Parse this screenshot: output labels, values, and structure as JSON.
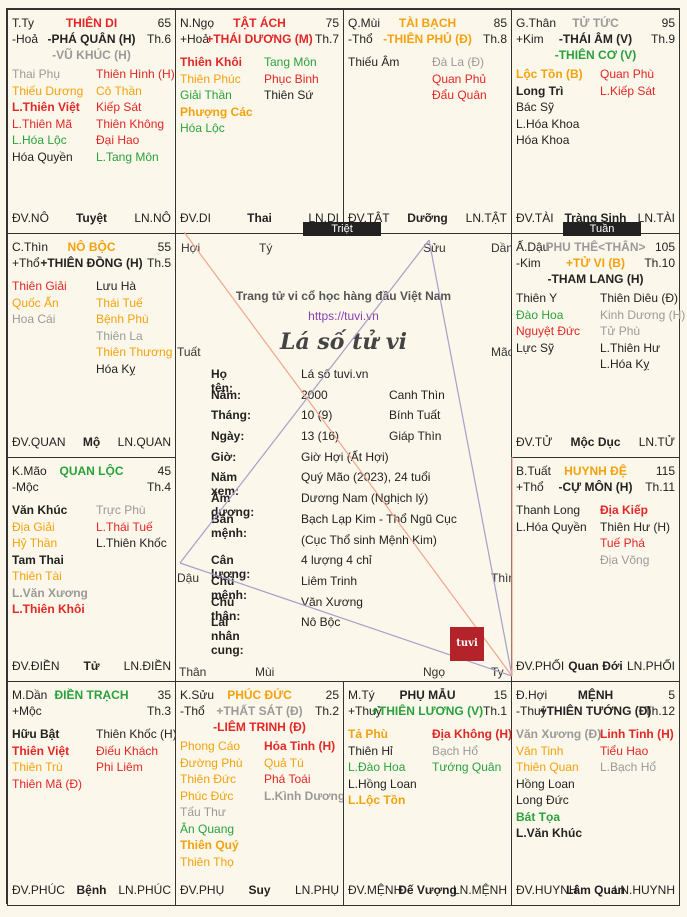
{
  "cells": [
    {
      "id": "ty",
      "pos": "T.Ty",
      "house": "THIÊN DI",
      "house_color": "#e32626",
      "age": "65",
      "el": "-Hoả",
      "main": "-PHÁ QUÂN (H)",
      "main_color": "#222",
      "th": "Th.6",
      "sub": "-VŨ KHÚC (H)",
      "sub_color": "#9a9a9a",
      "left": [
        {
          "t": "Thai Phụ",
          "c": "gray"
        },
        {
          "t": "Thiếu Dương",
          "c": "orange"
        },
        {
          "t": "L.Thiên Việt",
          "c": "red b"
        },
        {
          "t": "L.Thiên Mã",
          "c": "red"
        },
        {
          "t": "L.Hóa Lộc",
          "c": "green"
        },
        {
          "t": "Hóa Quyền",
          "c": "black"
        }
      ],
      "right": [
        {
          "t": "Thiên Hình (H)",
          "c": "red"
        },
        {
          "t": "Cô Thần",
          "c": "orange"
        },
        {
          "t": "Kiếp Sát",
          "c": "red"
        },
        {
          "t": "Thiên Không",
          "c": "red"
        },
        {
          "t": "Đại Hao",
          "c": "red"
        },
        {
          "t": "L.Tang Môn",
          "c": "green"
        }
      ],
      "b1": "ĐV.NÔ",
      "b2": "Tuyệt",
      "b3": "LN.NÔ"
    },
    {
      "id": "ngo",
      "pos": "N.Ngọ",
      "house": "TẬT ÁCH",
      "house_color": "#e32626",
      "age": "75",
      "el": "+Hoả",
      "main": "+THÁI DƯƠNG (M)",
      "main_color": "#e32626",
      "th": "Th.7",
      "sub": "",
      "sub_color": "#222",
      "left": [
        {
          "t": "Thiên Khôi",
          "c": "red b"
        },
        {
          "t": "Thiên Phúc",
          "c": "orange"
        },
        {
          "t": "Giải Thần",
          "c": "green"
        },
        {
          "t": "Phượng Các",
          "c": "orange b"
        },
        {
          "t": "Hóa Lộc",
          "c": "green"
        }
      ],
      "right": [
        {
          "t": "Tang Môn",
          "c": "green"
        },
        {
          "t": "Phục Binh",
          "c": "red"
        },
        {
          "t": "Thiên Sứ",
          "c": "black"
        }
      ],
      "b1": "ĐV.DI",
      "b2": "Thai",
      "b3": "LN.DI"
    },
    {
      "id": "mui",
      "pos": "Q.Mùi",
      "house": "TÀI BẠCH",
      "house_color": "#f3a20d",
      "age": "85",
      "el": "-Thổ",
      "main": "-THIÊN PHỦ (Đ)",
      "main_color": "#f3a20d",
      "th": "Th.8",
      "sub": "",
      "sub_color": "#222",
      "left": [
        {
          "t": "Thiếu Âm",
          "c": "black"
        }
      ],
      "right": [
        {
          "t": "Đà La (Đ)",
          "c": "gray"
        },
        {
          "t": "Quan Phủ",
          "c": "red"
        },
        {
          "t": "Đẩu Quân",
          "c": "red"
        }
      ],
      "b1": "ĐV.TẬT",
      "b2": "Dưỡng",
      "b3": "LN.TẬT"
    },
    {
      "id": "than",
      "pos": "G.Thân",
      "house": "TỬ TỨC",
      "house_color": "#9a9a9a",
      "age": "95",
      "el": "+Kim",
      "main": "-THÁI ÂM (V)",
      "main_color": "#222",
      "th": "Th.9",
      "sub": "-THIÊN CƠ (V)",
      "sub_color": "#2aa13d",
      "left": [
        {
          "t": "Lộc Tồn (B)",
          "c": "orange b"
        },
        {
          "t": "Long Trì",
          "c": "black b"
        },
        {
          "t": "Bác Sỹ",
          "c": "black"
        },
        {
          "t": "L.Hóa Khoa",
          "c": "black"
        },
        {
          "t": "Hóa Khoa",
          "c": "black"
        }
      ],
      "right": [
        {
          "t": "Quan Phù",
          "c": "red"
        },
        {
          "t": "L.Kiếp Sát",
          "c": "red"
        }
      ],
      "b1": "ĐV.TÀI",
      "b2": "Tràng Sinh",
      "b3": "LN.TÀI"
    },
    {
      "id": "thin",
      "pos": "C.Thìn",
      "house": "NÔ BỘC",
      "house_color": "#f3a20d",
      "age": "55",
      "el": "+Thổ",
      "main": "+THIÊN ĐỒNG (H)",
      "main_color": "#222",
      "th": "Th.5",
      "sub": "",
      "sub_color": "#222",
      "left": [
        {
          "t": "Thiên Giải",
          "c": "red"
        },
        {
          "t": "Quốc Ấn",
          "c": "orange"
        },
        {
          "t": "Hoa Cái",
          "c": "gray"
        }
      ],
      "right": [
        {
          "t": "Lưu Hà",
          "c": "black"
        },
        {
          "t": "Thái Tuế",
          "c": "orange"
        },
        {
          "t": "Bệnh Phù",
          "c": "orange"
        },
        {
          "t": "Thiên La",
          "c": "gray"
        },
        {
          "t": "Thiên Thương",
          "c": "orange"
        },
        {
          "t": "Hóa Kỵ",
          "c": "black"
        }
      ],
      "b1": "ĐV.QUAN",
      "b2": "Mộ",
      "b3": "LN.QUAN"
    },
    {
      "id": "dau",
      "pos": "Ấ.Dậu",
      "house": "PHU THÊ<THÂN>",
      "house_color": "#9a9a9a",
      "age": "105",
      "el": "-Kim",
      "main": "+TỬ VI (B)",
      "main_color": "#f3a20d",
      "th": "Th.10",
      "sub": "-THAM LANG (H)",
      "sub_color": "#222",
      "left": [
        {
          "t": "Thiên Y",
          "c": "black"
        },
        {
          "t": "Đào Hoa",
          "c": "green"
        },
        {
          "t": "Nguyệt Đức",
          "c": "red"
        },
        {
          "t": "Lực Sỹ",
          "c": "black"
        }
      ],
      "right": [
        {
          "t": "Thiên Diêu (Đ)",
          "c": "black"
        },
        {
          "t": "Kinh Dương (H)",
          "c": "gray"
        },
        {
          "t": "Tử Phù",
          "c": "gray"
        },
        {
          "t": "L.Thiên Hư",
          "c": "black"
        },
        {
          "t": "L.Hóa Kỵ",
          "c": "black"
        }
      ],
      "b1": "ĐV.TỬ",
      "b2": "Mộc Dục",
      "b3": "LN.TỬ"
    },
    {
      "id": "mao",
      "pos": "K.Mão",
      "house": "QUAN LỘC",
      "house_color": "#2aa13d",
      "age": "45",
      "el": "-Mộc",
      "main": "",
      "main_color": "#222",
      "th": "Th.4",
      "sub": "",
      "sub_color": "#222",
      "left": [
        {
          "t": "Văn Khúc",
          "c": "black b"
        },
        {
          "t": "Địa Giải",
          "c": "orange"
        },
        {
          "t": "Hỷ Thần",
          "c": "orange"
        },
        {
          "t": "Tam Thai",
          "c": "black b"
        },
        {
          "t": "Thiên Tài",
          "c": "orange"
        },
        {
          "t": "L.Văn Xương",
          "c": "gray b"
        },
        {
          "t": "L.Thiên Khôi",
          "c": "red b"
        }
      ],
      "right": [
        {
          "t": "Trực Phù",
          "c": "gray"
        },
        {
          "t": "L.Thái Tuế",
          "c": "red"
        },
        {
          "t": "L.Thiên Khốc",
          "c": "black"
        }
      ],
      "b1": "ĐV.ĐIỀN",
      "b2": "Tử",
      "b3": "LN.ĐIỀN"
    },
    {
      "id": "tuat",
      "pos": "B.Tuất",
      "house": "HUYNH ĐỆ",
      "house_color": "#f3a20d",
      "age": "115",
      "el": "+Thổ",
      "main": "-CỰ MÔN (H)",
      "main_color": "#222",
      "th": "Th.11",
      "sub": "",
      "sub_color": "#222",
      "left": [
        {
          "t": "Thanh Long",
          "c": "black"
        },
        {
          "t": "L.Hóa Quyền",
          "c": "black"
        }
      ],
      "right": [
        {
          "t": "Địa Kiếp",
          "c": "red b"
        },
        {
          "t": "Thiên Hư (H)",
          "c": "black"
        },
        {
          "t": "Tuế Phá",
          "c": "red"
        },
        {
          "t": "Địa Võng",
          "c": "gray"
        }
      ],
      "b1": "ĐV.PHỐI",
      "b2": "Quan Đới",
      "b3": "LN.PHỐI"
    },
    {
      "id": "dan",
      "pos": "M.Dần",
      "house": "ĐIỀN TRẠCH",
      "house_color": "#2aa13d",
      "age": "35",
      "el": "+Mộc",
      "main": "",
      "main_color": "#222",
      "th": "Th.3",
      "sub": "",
      "sub_color": "#222",
      "left": [
        {
          "t": "Hữu Bật",
          "c": "black b"
        },
        {
          "t": "Thiên Việt",
          "c": "red b"
        },
        {
          "t": "Thiên Trù",
          "c": "orange"
        },
        {
          "t": "Thiên Mã (Đ)",
          "c": "red"
        }
      ],
      "right": [
        {
          "t": "Thiên Khốc (H)",
          "c": "black"
        },
        {
          "t": "Điếu Khách",
          "c": "red"
        },
        {
          "t": "Phi Liêm",
          "c": "red"
        }
      ],
      "b1": "ĐV.PHÚC",
      "b2": "Bệnh",
      "b3": "LN.PHÚC"
    },
    {
      "id": "suu",
      "pos": "K.Sửu",
      "house": "PHÚC ĐỨC",
      "house_color": "#f3a20d",
      "age": "25",
      "el": "-Thổ",
      "main": "+THẤT SÁT (Đ)",
      "main_color": "#9a9a9a",
      "th": "Th.2",
      "sub": "-LIÊM TRINH (Đ)",
      "sub_color": "#e32626",
      "left": [
        {
          "t": "Phong Cáo",
          "c": "orange"
        },
        {
          "t": "Đường Phù",
          "c": "orange"
        },
        {
          "t": "Thiên Đức",
          "c": "orange"
        },
        {
          "t": "Phúc Đức",
          "c": "orange"
        },
        {
          "t": "Tấu Thư",
          "c": "gray"
        },
        {
          "t": "Ân Quang",
          "c": "green"
        },
        {
          "t": "Thiên Quý",
          "c": "orange b"
        },
        {
          "t": "Thiên Thọ",
          "c": "orange"
        }
      ],
      "right": [
        {
          "t": "Hỏa Tinh (H)",
          "c": "red b"
        },
        {
          "t": "Quả Tú",
          "c": "orange"
        },
        {
          "t": "Phá Toái",
          "c": "red"
        },
        {
          "t": "L.Kình Dương",
          "c": "gray b"
        }
      ],
      "b1": "ĐV.PHỤ",
      "b2": "Suy",
      "b3": "LN.PHỤ"
    },
    {
      "id": "ty2",
      "pos": "M.Tý",
      "house": "PHỤ MẪU",
      "house_color": "#222",
      "age": "15",
      "el": "+Thuỷ",
      "main": "+THIÊN LƯƠNG (V)",
      "main_color": "#2aa13d",
      "th": "Th.1",
      "sub": "",
      "sub_color": "#222",
      "left": [
        {
          "t": "Tả Phù",
          "c": "orange b"
        },
        {
          "t": "Thiên Hỉ",
          "c": "black"
        },
        {
          "t": "L.Đào Hoa",
          "c": "green"
        },
        {
          "t": "L.Hồng Loan",
          "c": "black"
        },
        {
          "t": "L.Lộc Tồn",
          "c": "orange b"
        }
      ],
      "right": [
        {
          "t": "Địa Không (H)",
          "c": "red b"
        },
        {
          "t": "Bạch Hổ",
          "c": "gray"
        },
        {
          "t": "Tướng Quân",
          "c": "green"
        }
      ],
      "b1": "ĐV.MỆNH",
      "b2": "Đế Vượng",
      "b3": "LN.MỆNH"
    },
    {
      "id": "hoi",
      "pos": "Đ.Hợi",
      "house": "MỆNH",
      "house_color": "#222",
      "age": "5",
      "el": "-Thuỷ",
      "main": "+THIÊN TƯỚNG (Đ)",
      "main_color": "#222",
      "th": "Th.12",
      "sub": "",
      "sub_color": "#222",
      "left": [
        {
          "t": "Văn Xương (Đ)",
          "c": "gray b"
        },
        {
          "t": "Văn Tinh",
          "c": "orange"
        },
        {
          "t": "Thiên Quan",
          "c": "orange"
        },
        {
          "t": "Hồng Loan",
          "c": "black"
        },
        {
          "t": "Long Đức",
          "c": "black"
        },
        {
          "t": "Bát Tọa",
          "c": "green b"
        },
        {
          "t": "L.Văn Khúc",
          "c": "black b"
        }
      ],
      "right": [
        {
          "t": "Linh Tinh (H)",
          "c": "red b"
        },
        {
          "t": "Tiểu Hao",
          "c": "red"
        },
        {
          "t": "L.Bạch Hổ",
          "c": "gray"
        }
      ],
      "b1": "ĐV.HUYNH",
      "b2": "Lâm Quan",
      "b3": "LN.HUYNH"
    }
  ],
  "center": {
    "site_title": "Trang tử vi cổ học hàng đầu Việt Nam",
    "link": "https://tuvi.vn",
    "heading": "Lá số tử vi",
    "info": [
      {
        "k": "Họ tên:",
        "v": "Lá số tuvi.vn",
        "v2": ""
      },
      {
        "k": "Năm:",
        "v": "2000",
        "v2": "Canh Thìn"
      },
      {
        "k": "Tháng:",
        "v": "10 (9)",
        "v2": "Bính Tuất"
      },
      {
        "k": "Ngày:",
        "v": "13 (16)",
        "v2": "Giáp Thìn"
      },
      {
        "k": "Giờ:",
        "v": "Giờ Hợi (Ất Hợi)",
        "v2": ""
      },
      {
        "k": "Năm xem:",
        "v": "Quý Mão (2023), 24 tuổi",
        "v2": ""
      },
      {
        "k": "Âm dương:",
        "v": "Dương Nam (Nghịch lý)",
        "v2": ""
      },
      {
        "k": "Bản mệnh:",
        "v": "Bạch Lạp Kim - Thổ Ngũ Cục",
        "v2": ""
      },
      {
        "k": "",
        "v": "(Cục Thổ sinh Mệnh Kim)",
        "v2": ""
      },
      {
        "k": "Cân lượng:",
        "v": "4 lượng 4 chỉ",
        "v2": ""
      },
      {
        "k": "Chủ mệnh:",
        "v": "Liêm Trinh",
        "v2": ""
      },
      {
        "k": "Chủ thân:",
        "v": "Văn Xương",
        "v2": ""
      },
      {
        "k": "Lai nhân cung:",
        "v": "Nô Bộc",
        "v2": ""
      }
    ],
    "dirs": {
      "hoi": "Hợi",
      "ty": "Tý",
      "suu": "Sửu",
      "dan": "Dần",
      "tuat": "Tuất",
      "mao": "Mão",
      "dau": "Dậu",
      "thin": "Thìn",
      "than": "Thân",
      "mui": "Mùi",
      "ngo": "Ngọ",
      "ty2": "Ty"
    },
    "triet": "Triệt",
    "tuan": "Tuần",
    "logo": "tuvi"
  }
}
